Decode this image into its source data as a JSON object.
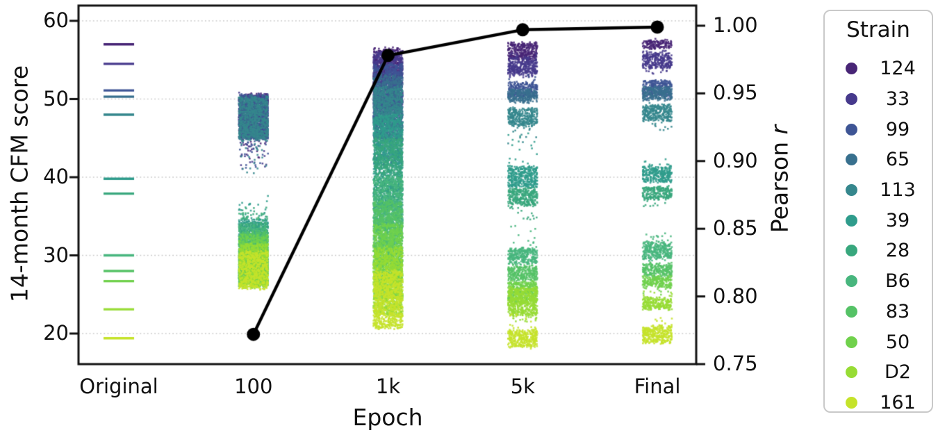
{
  "figure": {
    "background": "#ffffff",
    "text_color": "#111111",
    "spine_color": "#111111",
    "grid_color": "#c9c9c9"
  },
  "chart_data": {
    "type": "scatter",
    "title": "",
    "xlabel": "Epoch",
    "ylabel_left": "14-month CFM score",
    "ylabel_right_word": "Pearson",
    "ylabel_right_symbol": "r",
    "x_categories": [
      "Original",
      "100",
      "1k",
      "5k",
      "Final"
    ],
    "left_axis": {
      "ticks": [
        "60",
        "50",
        "40",
        "30",
        "20"
      ],
      "tick_values": [
        60,
        50,
        40,
        30,
        20
      ],
      "ylim": [
        16.1,
        62.0
      ],
      "grid": "dotted"
    },
    "right_axis": {
      "ticks": [
        "1.00",
        "0.95",
        "0.90",
        "0.85",
        "0.80",
        "0.75"
      ],
      "tick_values": [
        1.0,
        0.95,
        0.9,
        0.85,
        0.8,
        0.75
      ],
      "ylim": [
        0.75,
        1.015
      ]
    },
    "legend": {
      "title": "Strain",
      "position": "outside-right"
    },
    "pearson_line": {
      "name": "Pearson r vs epoch",
      "color": "#000000",
      "points": [
        {
          "x": "100",
          "r": 0.772
        },
        {
          "x": "1k",
          "r": 0.978
        },
        {
          "x": "5k",
          "r": 0.997
        },
        {
          "x": "Final",
          "r": 0.999
        }
      ]
    },
    "strains": [
      {
        "label": "124",
        "color": "#482576",
        "original": 57.0,
        "bands": {
          "100": {
            "lo": 45.5,
            "hi": 50.6,
            "tlo": 42.0
          },
          "1k": {
            "lo": 51.5,
            "hi": 56.5
          },
          "5k": {
            "lo": 55.0,
            "hi": 57.2
          },
          "Final": {
            "lo": 56.5,
            "hi": 57.5
          }
        }
      },
      {
        "label": "33",
        "color": "#46398c",
        "original": 54.5,
        "bands": {
          "100": {
            "lo": 45.0,
            "hi": 50.6,
            "tlo": 41.0
          },
          "1k": {
            "lo": 49.0,
            "hi": 56.0
          },
          "5k": {
            "lo": 53.0,
            "hi": 55.2,
            "thi": 55.9
          },
          "Final": {
            "lo": 54.0,
            "hi": 55.8,
            "tlo": 53.0,
            "thi": 56.2
          }
        }
      },
      {
        "label": "99",
        "color": "#3e5595",
        "original": 51.1,
        "bands": {
          "100": {
            "lo": 44.9,
            "hi": 50.5,
            "tlo": 41.0
          },
          "1k": {
            "lo": 46.5,
            "hi": 54.5
          },
          "5k": {
            "lo": 50.3,
            "hi": 52.0,
            "thi": 53.2
          },
          "Final": {
            "lo": 50.5,
            "hi": 52.3,
            "tlo": 49.8
          }
        }
      },
      {
        "label": "65",
        "color": "#38708e",
        "original": 50.3,
        "bands": {
          "100": {
            "lo": 44.9,
            "hi": 50.4
          },
          "1k": {
            "lo": 44.5,
            "hi": 53.0
          },
          "5k": {
            "lo": 49.6,
            "hi": 51.2
          },
          "Final": {
            "lo": 49.9,
            "hi": 51.5
          }
        }
      },
      {
        "label": "113",
        "color": "#35878d",
        "original": 48.0,
        "bands": {
          "100": {
            "lo": 44.9,
            "hi": 50.2,
            "tlo": 40.5
          },
          "1k": {
            "lo": 41.5,
            "hi": 51.5
          },
          "5k": {
            "lo": 46.6,
            "hi": 48.8,
            "tlo": 44.0
          },
          "Final": {
            "lo": 47.3,
            "hi": 49.3,
            "tlo": 46.0
          }
        }
      },
      {
        "label": "39",
        "color": "#2f9c8c",
        "original": 39.8,
        "bands": {
          "100": {
            "lo": 28.5,
            "hi": 34.5,
            "thi": 37.8
          },
          "1k": {
            "lo": 36.0,
            "hi": 48.0
          },
          "5k": {
            "lo": 38.7,
            "hi": 41.3,
            "thi": 46.0
          },
          "Final": {
            "lo": 39.4,
            "hi": 41.3,
            "thi": 42.5
          }
        }
      },
      {
        "label": "28",
        "color": "#38a77d",
        "original": 37.9,
        "bands": {
          "100": {
            "lo": 27.5,
            "hi": 34.0,
            "thi": 36.5
          },
          "1k": {
            "lo": 33.0,
            "hi": 45.0
          },
          "5k": {
            "lo": 36.4,
            "hi": 38.5,
            "tlo": 34.5
          },
          "Final": {
            "lo": 37.2,
            "hi": 38.7,
            "tlo": 36.0
          }
        }
      },
      {
        "label": "B6",
        "color": "#48b67e",
        "original": 30.0,
        "bands": {
          "100": {
            "lo": 26.3,
            "hi": 33.5,
            "thi": 35.5
          },
          "1k": {
            "lo": 28.5,
            "hi": 40.0
          },
          "5k": {
            "lo": 28.9,
            "hi": 30.9,
            "thi": 33.8
          },
          "Final": {
            "lo": 29.5,
            "hi": 31.6,
            "thi": 33.0
          }
        }
      },
      {
        "label": "83",
        "color": "#55c266",
        "original": 28.0,
        "bands": {
          "100": {
            "lo": 26.1,
            "hi": 33.0
          },
          "1k": {
            "lo": 26.5,
            "hi": 37.0
          },
          "5k": {
            "lo": 26.8,
            "hi": 28.6
          },
          "Final": {
            "lo": 27.4,
            "hi": 28.9
          }
        }
      },
      {
        "label": "50",
        "color": "#70d14c",
        "original": 26.7,
        "bands": {
          "100": {
            "lo": 26.0,
            "hi": 32.5
          },
          "1k": {
            "lo": 24.5,
            "hi": 34.0
          },
          "5k": {
            "lo": 24.0,
            "hi": 26.6
          },
          "Final": {
            "lo": 25.9,
            "hi": 27.3,
            "tlo": 24.9
          }
        }
      },
      {
        "label": "D2",
        "color": "#97dc35",
        "original": 23.1,
        "bands": {
          "100": {
            "lo": 25.9,
            "hi": 31.5
          },
          "1k": {
            "lo": 22.5,
            "hi": 31.0
          },
          "5k": {
            "lo": 22.4,
            "hi": 25.8,
            "tlo": 21.5
          },
          "Final": {
            "lo": 23.1,
            "hi": 24.6,
            "thi": 26.0
          }
        }
      },
      {
        "label": "161",
        "color": "#c5e32a",
        "original": 19.4,
        "bands": {
          "100": {
            "lo": 25.8,
            "hi": 30.5
          },
          "1k": {
            "lo": 20.7,
            "hi": 28.0
          },
          "5k": {
            "lo": 18.3,
            "hi": 20.4,
            "thi": 22.5
          },
          "Final": {
            "lo": 18.8,
            "hi": 20.9,
            "thi": 22.0
          }
        }
      }
    ]
  }
}
